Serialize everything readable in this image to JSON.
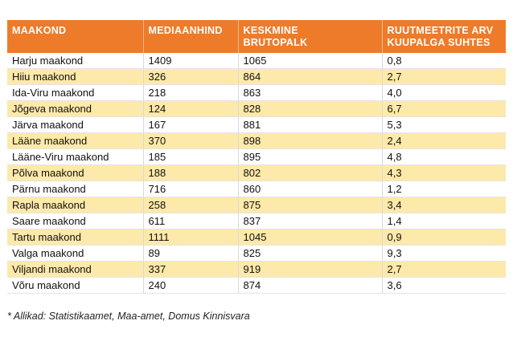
{
  "table": {
    "headers": [
      [
        "MAAKOND"
      ],
      [
        "MEDIAANHIND"
      ],
      [
        "KESKMINE",
        "BRUTOPALK"
      ],
      [
        "RUUTMEETRITE ARV",
        "KUUPALGA SUHTES"
      ]
    ],
    "rows": [
      [
        "Harju maakond",
        "1409",
        "1065",
        "0,8"
      ],
      [
        "Hiiu maakond",
        "326",
        "864",
        "2,7"
      ],
      [
        "Ida-Viru maakond",
        "218",
        "863",
        "4,0"
      ],
      [
        "Jõgeva maakond",
        "124",
        "828",
        "6,7"
      ],
      [
        "Järva maakond",
        "167",
        "881",
        "5,3"
      ],
      [
        "Lääne maakond",
        "370",
        "898",
        "2,4"
      ],
      [
        "Lääne-Viru maakond",
        "185",
        "895",
        "4,8"
      ],
      [
        "Põlva maakond",
        "188",
        "802",
        "4,3"
      ],
      [
        "Pärnu maakond",
        "716",
        "860",
        "1,2"
      ],
      [
        "Rapla maakond",
        "258",
        "875",
        "3,4"
      ],
      [
        "Saare maakond",
        "611",
        "837",
        "1,4"
      ],
      [
        "Tartu maakond",
        "1111",
        "1045",
        "0,9"
      ],
      [
        "Valga maakond",
        "89",
        "825",
        "9,3"
      ],
      [
        "Viljandi maakond",
        "337",
        "919",
        "2,7"
      ],
      [
        "Võru maakond",
        "240",
        "874",
        "3,6"
      ]
    ]
  },
  "footnote": "* Allikad: Statistikaamet, Maa-amet, Domus Kinnisvara",
  "colors": {
    "header_bg": "#ee7b2a",
    "header_text": "#ffffff",
    "stripe": "#fde9a9",
    "row_bg": "#ffffff"
  }
}
